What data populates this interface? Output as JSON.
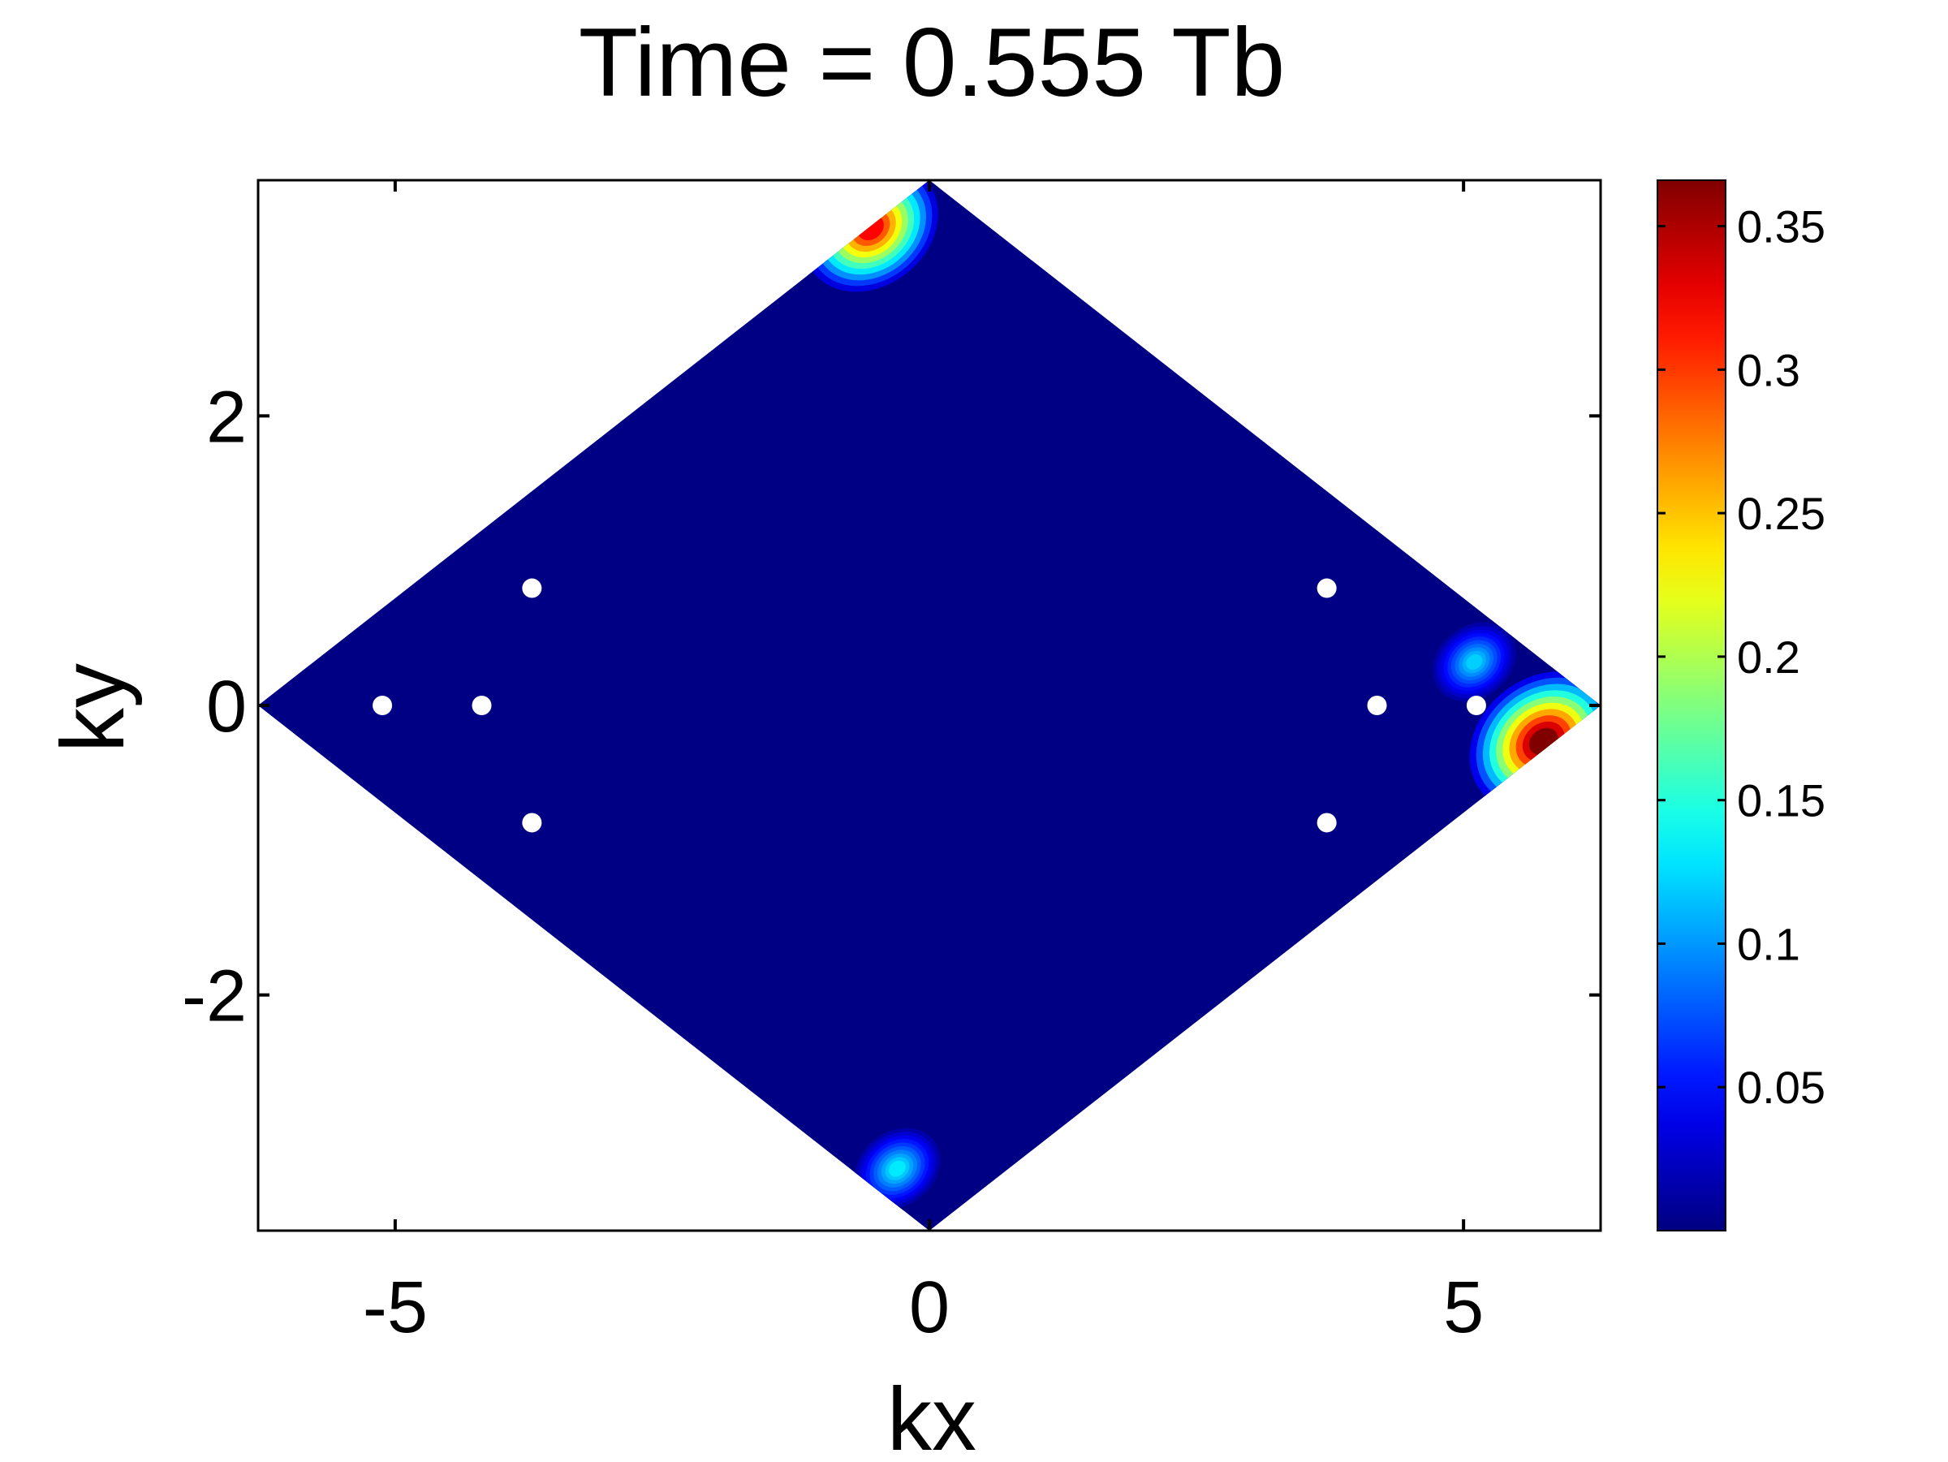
{
  "chart_data": {
    "type": "heatmap",
    "title": "Time = 0.555 Tb",
    "xlabel": "kx",
    "ylabel": "ky",
    "xlim": [
      -6.283,
      6.283
    ],
    "ylim": [
      -3.628,
      3.628
    ],
    "xticks": [
      -5,
      0,
      5
    ],
    "xtick_labels": [
      "-5",
      "0",
      "5"
    ],
    "yticks": [
      -2,
      0,
      2
    ],
    "ytick_labels": [
      "-2",
      "0",
      "2"
    ],
    "grid": false,
    "domain": {
      "shape": "rhombus",
      "vertices": [
        [
          -6.283,
          0
        ],
        [
          0,
          3.628
        ],
        [
          6.283,
          0
        ],
        [
          0,
          -3.628
        ]
      ],
      "background_value": 0.002
    },
    "hotspots": [
      {
        "kx": 5.75,
        "ky": -0.25,
        "value": 0.37
      },
      {
        "kx": -0.55,
        "ky": 3.3,
        "value": 0.32
      },
      {
        "kx": -0.3,
        "ky": -3.2,
        "value": 0.13
      },
      {
        "kx": 5.1,
        "ky": 0.3,
        "value": 0.12
      }
    ],
    "holes": [
      {
        "kx": -5.12,
        "ky": 0
      },
      {
        "kx": -4.19,
        "ky": 0
      },
      {
        "kx": -3.72,
        "ky": 0.81
      },
      {
        "kx": -3.72,
        "ky": -0.81
      },
      {
        "kx": 3.72,
        "ky": 0.81
      },
      {
        "kx": 3.72,
        "ky": -0.81
      },
      {
        "kx": 4.19,
        "ky": 0
      },
      {
        "kx": 5.12,
        "ky": 0
      }
    ],
    "colorbar": {
      "colormap": "jet",
      "min": 0.0,
      "max": 0.366,
      "ticks": [
        0.05,
        0.1,
        0.15,
        0.2,
        0.25,
        0.3,
        0.35
      ],
      "tick_labels": [
        "0.05",
        "0.1",
        "0.15",
        "0.2",
        "0.25",
        "0.3",
        "0.35"
      ]
    }
  }
}
